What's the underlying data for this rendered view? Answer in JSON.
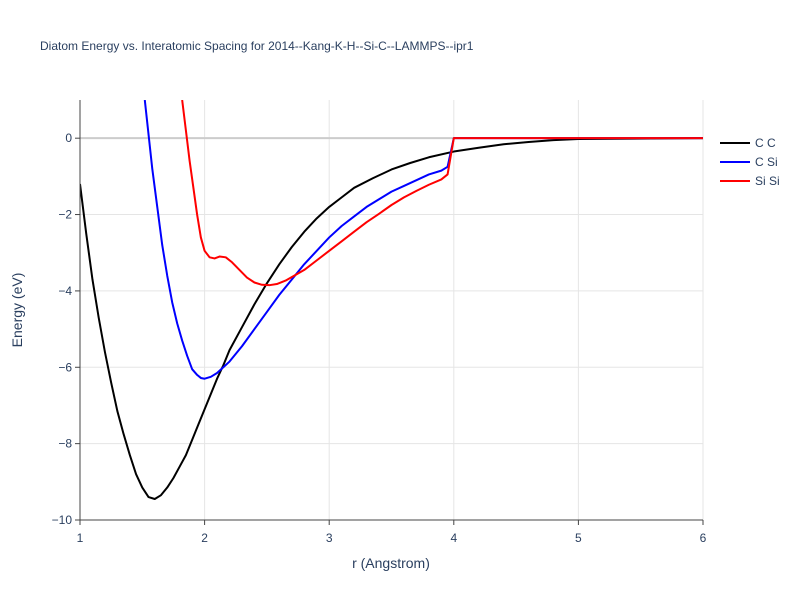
{
  "chart_data": {
    "type": "line",
    "title": "Diatom Energy vs. Interatomic Spacing for 2014--Kang-K-H--Si-C--LAMMPS--ipr1",
    "xlabel": "r (Angstrom)",
    "ylabel": "Energy (eV)",
    "xlim": [
      1,
      6
    ],
    "ylim": [
      -10,
      1
    ],
    "x_ticks": [
      1,
      2,
      3,
      4,
      5,
      6
    ],
    "y_ticks": [
      -10,
      -8,
      -6,
      -4,
      -2,
      0
    ],
    "x_tick_labels": [
      "1",
      "2",
      "3",
      "4",
      "5",
      "6"
    ],
    "y_tick_labels": [
      "−10",
      "−8",
      "−6",
      "−4",
      "−2",
      "0"
    ],
    "grid": true,
    "legend_position": "top-right",
    "series": [
      {
        "name": "C C",
        "color": "#000000",
        "points": [
          [
            1.0,
            -1.2
          ],
          [
            1.05,
            -2.5
          ],
          [
            1.1,
            -3.7
          ],
          [
            1.15,
            -4.7
          ],
          [
            1.2,
            -5.6
          ],
          [
            1.25,
            -6.4
          ],
          [
            1.3,
            -7.15
          ],
          [
            1.35,
            -7.75
          ],
          [
            1.4,
            -8.3
          ],
          [
            1.45,
            -8.8
          ],
          [
            1.5,
            -9.15
          ],
          [
            1.55,
            -9.4
          ],
          [
            1.6,
            -9.45
          ],
          [
            1.65,
            -9.35
          ],
          [
            1.7,
            -9.15
          ],
          [
            1.75,
            -8.9
          ],
          [
            1.8,
            -8.6
          ],
          [
            1.85,
            -8.3
          ],
          [
            1.9,
            -7.9
          ],
          [
            1.95,
            -7.5
          ],
          [
            2.0,
            -7.1
          ],
          [
            2.05,
            -6.7
          ],
          [
            2.1,
            -6.3
          ],
          [
            2.15,
            -5.95
          ],
          [
            2.2,
            -5.55
          ],
          [
            2.3,
            -4.95
          ],
          [
            2.4,
            -4.35
          ],
          [
            2.5,
            -3.8
          ],
          [
            2.6,
            -3.3
          ],
          [
            2.7,
            -2.85
          ],
          [
            2.8,
            -2.45
          ],
          [
            2.9,
            -2.1
          ],
          [
            3.0,
            -1.8
          ],
          [
            3.1,
            -1.55
          ],
          [
            3.2,
            -1.3
          ],
          [
            3.35,
            -1.05
          ],
          [
            3.5,
            -0.82
          ],
          [
            3.65,
            -0.65
          ],
          [
            3.8,
            -0.5
          ],
          [
            4.0,
            -0.35
          ],
          [
            4.2,
            -0.25
          ],
          [
            4.4,
            -0.16
          ],
          [
            4.6,
            -0.1
          ],
          [
            4.8,
            -0.05
          ],
          [
            5.0,
            -0.02
          ],
          [
            6.0,
            0.0
          ]
        ]
      },
      {
        "name": "C Si",
        "color": "#0000ff",
        "points": [
          [
            1.52,
            1.0
          ],
          [
            1.55,
            0.1
          ],
          [
            1.58,
            -0.8
          ],
          [
            1.62,
            -1.8
          ],
          [
            1.66,
            -2.8
          ],
          [
            1.7,
            -3.6
          ],
          [
            1.74,
            -4.3
          ],
          [
            1.78,
            -4.85
          ],
          [
            1.82,
            -5.3
          ],
          [
            1.86,
            -5.7
          ],
          [
            1.9,
            -6.05
          ],
          [
            1.94,
            -6.2
          ],
          [
            1.97,
            -6.28
          ],
          [
            2.0,
            -6.3
          ],
          [
            2.05,
            -6.25
          ],
          [
            2.1,
            -6.15
          ],
          [
            2.2,
            -5.85
          ],
          [
            2.3,
            -5.45
          ],
          [
            2.4,
            -5.0
          ],
          [
            2.5,
            -4.55
          ],
          [
            2.6,
            -4.1
          ],
          [
            2.7,
            -3.7
          ],
          [
            2.8,
            -3.3
          ],
          [
            2.9,
            -2.95
          ],
          [
            3.0,
            -2.6
          ],
          [
            3.1,
            -2.3
          ],
          [
            3.2,
            -2.05
          ],
          [
            3.3,
            -1.8
          ],
          [
            3.4,
            -1.6
          ],
          [
            3.5,
            -1.4
          ],
          [
            3.6,
            -1.25
          ],
          [
            3.7,
            -1.1
          ],
          [
            3.8,
            -0.95
          ],
          [
            3.9,
            -0.85
          ],
          [
            3.95,
            -0.75
          ],
          [
            4.0,
            -0.0
          ],
          [
            6.0,
            0.0
          ]
        ]
      },
      {
        "name": "Si Si",
        "color": "#ff0000",
        "points": [
          [
            1.82,
            1.0
          ],
          [
            1.85,
            0.2
          ],
          [
            1.88,
            -0.6
          ],
          [
            1.91,
            -1.3
          ],
          [
            1.94,
            -2.0
          ],
          [
            1.97,
            -2.6
          ],
          [
            2.0,
            -2.95
          ],
          [
            2.04,
            -3.12
          ],
          [
            2.08,
            -3.15
          ],
          [
            2.12,
            -3.1
          ],
          [
            2.17,
            -3.12
          ],
          [
            2.22,
            -3.25
          ],
          [
            2.28,
            -3.45
          ],
          [
            2.34,
            -3.65
          ],
          [
            2.4,
            -3.78
          ],
          [
            2.46,
            -3.84
          ],
          [
            2.52,
            -3.85
          ],
          [
            2.58,
            -3.82
          ],
          [
            2.65,
            -3.73
          ],
          [
            2.72,
            -3.6
          ],
          [
            2.8,
            -3.45
          ],
          [
            2.9,
            -3.2
          ],
          [
            3.0,
            -2.95
          ],
          [
            3.1,
            -2.7
          ],
          [
            3.2,
            -2.45
          ],
          [
            3.3,
            -2.2
          ],
          [
            3.4,
            -1.98
          ],
          [
            3.5,
            -1.75
          ],
          [
            3.6,
            -1.55
          ],
          [
            3.7,
            -1.38
          ],
          [
            3.8,
            -1.22
          ],
          [
            3.9,
            -1.08
          ],
          [
            3.95,
            -0.95
          ],
          [
            4.0,
            0.0
          ],
          [
            6.0,
            0.0
          ]
        ]
      }
    ]
  }
}
